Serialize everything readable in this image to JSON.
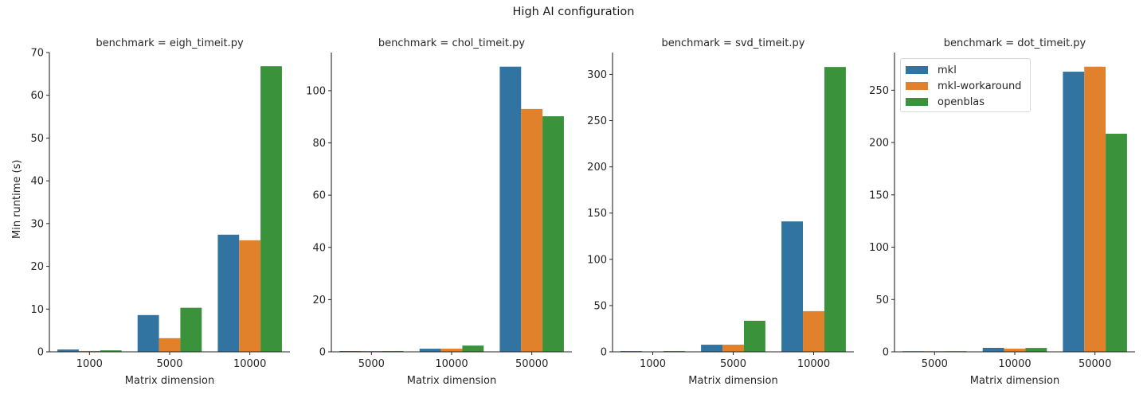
{
  "figure": {
    "title": "High AI configuration",
    "ylabel": "Min runtime (s)",
    "xlabel": "Matrix dimension"
  },
  "legend": {
    "items": [
      {
        "label": "mkl",
        "color": "#3274a1"
      },
      {
        "label": "mkl-workaround",
        "color": "#e1812c"
      },
      {
        "label": "openblas",
        "color": "#3a923a"
      }
    ]
  },
  "chart_data": [
    {
      "type": "bar",
      "title": "benchmark = eigh_timeit.py",
      "xlabel": "Matrix dimension",
      "ylabel": "Min runtime (s)",
      "categories": [
        "1000",
        "5000",
        "10000"
      ],
      "series": [
        {
          "name": "mkl",
          "values": [
            0.55,
            8.6,
            27.4
          ]
        },
        {
          "name": "mkl-workaround",
          "values": [
            0.2,
            3.2,
            26.1
          ]
        },
        {
          "name": "openblas",
          "values": [
            0.35,
            10.3,
            66.8
          ]
        }
      ],
      "ylim": [
        0,
        70
      ],
      "yticks": [
        0,
        10,
        20,
        30,
        40,
        50,
        60,
        70
      ],
      "grid": false,
      "legend_position": "none"
    },
    {
      "type": "bar",
      "title": "benchmark = chol_timeit.py",
      "xlabel": "Matrix dimension",
      "ylabel": "",
      "categories": [
        "5000",
        "10000",
        "50000"
      ],
      "series": [
        {
          "name": "mkl",
          "values": [
            0.3,
            1.2,
            109.2
          ]
        },
        {
          "name": "mkl-workaround",
          "values": [
            0.3,
            1.2,
            93.0
          ]
        },
        {
          "name": "openblas",
          "values": [
            0.3,
            2.4,
            90.2
          ]
        }
      ],
      "ylim": [
        0,
        114.6
      ],
      "yticks": [
        0,
        20,
        40,
        60,
        80,
        100
      ],
      "grid": false,
      "legend_position": "none"
    },
    {
      "type": "bar",
      "title": "benchmark = svd_timeit.py",
      "xlabel": "Matrix dimension",
      "ylabel": "",
      "categories": [
        "1000",
        "5000",
        "10000"
      ],
      "series": [
        {
          "name": "mkl",
          "values": [
            0.8,
            7.7,
            141
          ]
        },
        {
          "name": "mkl-workaround",
          "values": [
            0.1,
            7.7,
            44
          ]
        },
        {
          "name": "openblas",
          "values": [
            0.8,
            33.6,
            308
          ]
        }
      ],
      "ylim": [
        0,
        323.6
      ],
      "yticks": [
        0,
        50,
        100,
        150,
        200,
        250,
        300
      ],
      "grid": false,
      "legend_position": "none"
    },
    {
      "type": "bar",
      "title": "benchmark = dot_timeit.py",
      "xlabel": "Matrix dimension",
      "ylabel": "",
      "categories": [
        "5000",
        "10000",
        "50000"
      ],
      "series": [
        {
          "name": "mkl",
          "values": [
            0.6,
            3.8,
            267.7
          ]
        },
        {
          "name": "mkl-workaround",
          "values": [
            0.6,
            3.0,
            272.5
          ]
        },
        {
          "name": "openblas",
          "values": [
            0.6,
            3.7,
            208.4
          ]
        }
      ],
      "ylim": [
        0,
        286
      ],
      "yticks": [
        0,
        50,
        100,
        150,
        200,
        250
      ],
      "grid": false,
      "legend_position": "upper left"
    }
  ]
}
